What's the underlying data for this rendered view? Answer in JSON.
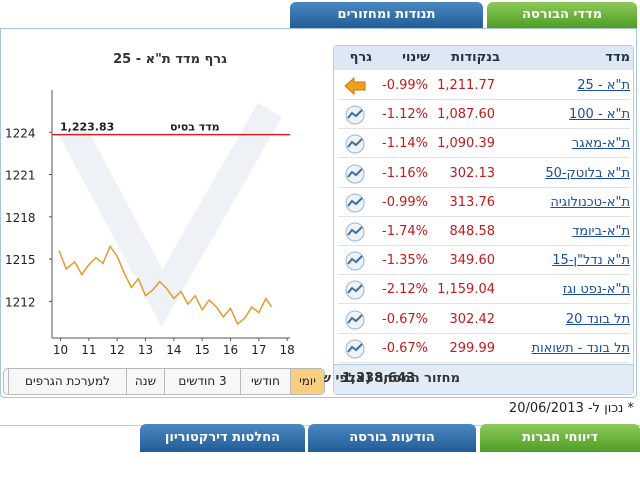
{
  "tabs_top": [
    "מדדי הבורסה",
    "תנודות ומחזורים"
  ],
  "chart": {
    "type": "line",
    "title": "גרף מדד ת\"א - 25",
    "color": "#e39a2b",
    "x": [
      9.95,
      10.2,
      10.5,
      10.75,
      11,
      11.25,
      11.5,
      11.75,
      12,
      12.25,
      12.5,
      12.75,
      13,
      13.25,
      13.5,
      13.75,
      14,
      14.25,
      14.5,
      14.75,
      15,
      15.25,
      15.5,
      15.75,
      16,
      16.25,
      16.5,
      16.75,
      17,
      17.25,
      17.45
    ],
    "values": [
      1215.6,
      1214.3,
      1214.8,
      1213.9,
      1214.6,
      1215.1,
      1214.7,
      1215.9,
      1215.2,
      1214.0,
      1213.0,
      1213.6,
      1212.4,
      1212.8,
      1213.4,
      1212.9,
      1212.2,
      1212.7,
      1211.8,
      1212.4,
      1211.4,
      1212.1,
      1211.6,
      1210.9,
      1211.5,
      1210.4,
      1210.8,
      1211.6,
      1211.2,
      1212.2,
      1211.6
    ],
    "xlim": [
      9.7,
      18.1
    ],
    "xticks": [
      10,
      11,
      12,
      13,
      14,
      15,
      16,
      17,
      18
    ],
    "ylim": [
      1209.4,
      1227
    ],
    "yticks": [
      1212,
      1215,
      1218,
      1221,
      1224
    ],
    "base_line": {
      "text": "מדד בסיס",
      "value": 1223.83,
      "label": "1,223.83",
      "color": "#d42020"
    }
  },
  "periods": [
    "יומי",
    "חודשי",
    "3 חודשים",
    "שנה",
    "למערכת הגרפים"
  ],
  "table": {
    "headers": [
      "מדד",
      "בנקודות",
      "שינוי",
      "גרף"
    ],
    "rows": [
      [
        "ת\"א - 25",
        "1,211.77",
        "-0.99%"
      ],
      [
        "ת\"א - 100",
        "1,087.60",
        "-1.12%"
      ],
      [
        "ת\"א-מאגר",
        "1,090.39",
        "-1.14%"
      ],
      [
        "ת\"א בלוטק-50",
        "302.13",
        "-1.16%"
      ],
      [
        "ת\"א-טכנולוגיה",
        "313.76",
        "-0.99%"
      ],
      [
        "ת\"א-ביומד",
        "848.58",
        "-1.74%"
      ],
      [
        "ת\"א נדל\"ן-15",
        "349.60",
        "-1.35%"
      ],
      [
        "ת\"א-נפט וגז",
        "1,159.04",
        "-2.12%"
      ],
      [
        "תל בונד 20",
        "302.42",
        "-0.67%"
      ],
      [
        "תל בונד - תשואות",
        "299.99",
        "-0.67%"
      ]
    ],
    "footer": {
      "label": "מחזור המסחר (אלפי ש\"ח)",
      "value": "1,338,643"
    }
  },
  "note": "* נכון ל- 20/06/2013",
  "tabs_bottom": [
    "דיווחי חברות",
    "הודעות בורסה",
    "החלטות דירקטוריון"
  ]
}
